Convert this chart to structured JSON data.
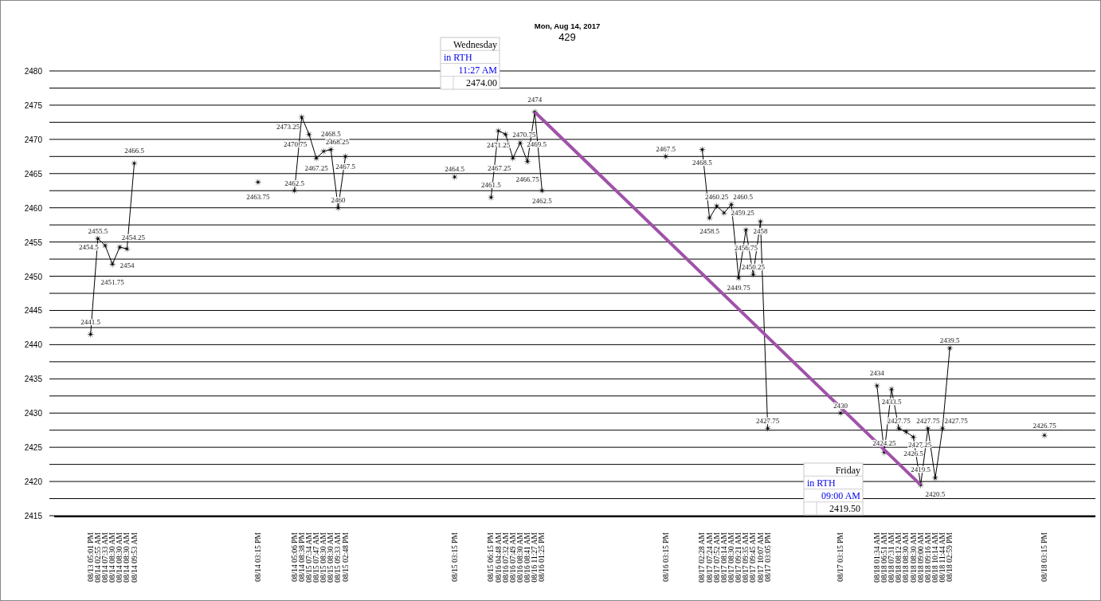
{
  "chart_data": {
    "type": "line",
    "title": "Mon, Aug 14, 2017",
    "subtitle": "429",
    "categories": [
      null,
      null,
      null,
      null,
      null,
      "08/13 05:01 PM",
      "08/14 02:55 AM",
      "08/14 07:33 AM",
      "08/14 08:30 AM",
      "08/14 08:30 AM",
      "08/14 08:30 AM",
      "08/14 09:53 AM",
      null,
      null,
      null,
      null,
      null,
      null,
      null,
      null,
      null,
      null,
      null,
      null,
      null,
      null,
      null,
      null,
      "08/14 03:15 PM",
      null,
      null,
      null,
      null,
      "08/14 05:06 PM",
      "08/14 08:38 PM",
      "08/15 07:34 AM",
      "08/15 07:47 AM",
      "08/15 08:30 AM",
      "08/15 08:30 AM",
      "08/15 09:33 AM",
      "08/15 02:48 PM",
      null,
      null,
      null,
      null,
      null,
      null,
      null,
      null,
      null,
      null,
      null,
      null,
      null,
      null,
      "08/15 03:15 PM",
      null,
      null,
      null,
      null,
      "08/15 06:15 PM",
      "08/16 04:48 AM",
      "08/16 07:32 AM",
      "08/16 07:49 AM",
      "08/16 08:30 AM",
      "08/16 08:41 AM",
      "08/16 11:27 AM",
      "08/16 01:25 PM",
      null,
      null,
      null,
      null,
      null,
      null,
      null,
      null,
      null,
      null,
      null,
      null,
      null,
      null,
      null,
      null,
      "08/16 03:15 PM",
      null,
      null,
      null,
      null,
      "08/17 02:28 AM",
      "08/17 07:24 AM",
      "08/17 07:52 AM",
      "08/17 08:14 AM",
      "08/17 08:30 AM",
      "08/17 09:21 AM",
      "08/17 09:35 AM",
      "08/17 09:45 AM",
      "08/17 10:07 AM",
      "08/17 03:05 PM",
      null,
      null,
      null,
      null,
      null,
      null,
      null,
      null,
      null,
      "08/17 03:15 PM",
      null,
      null,
      null,
      null,
      "08/18 01:34 AM",
      "08/18 06:51 AM",
      "08/18 07:31 AM",
      "08/18 08:12 AM",
      "08/18 08:30 AM",
      "08/18 08:30 AM",
      "08/18 09:00 AM",
      "08/18 09:16 AM",
      "08/18 10:14 AM",
      "08/18 11:44 AM",
      "08/18 02:59 PM",
      null,
      null,
      null,
      null,
      null,
      null,
      null,
      null,
      null,
      null,
      null,
      null,
      "08/18 03:15 PM",
      null,
      null,
      null,
      null,
      null,
      null,
      null
    ],
    "series": [
      {
        "color": "#000000",
        "marker": "star",
        "values": [
          null,
          null,
          null,
          null,
          null,
          2441.5,
          2455.5,
          2454.5,
          2451.75,
          2454.25,
          2454,
          2466.5,
          null,
          null,
          null,
          null,
          null,
          null,
          null,
          null,
          null,
          null,
          null,
          null,
          null,
          null,
          null,
          null,
          2463.75,
          null,
          null,
          null,
          null,
          2462.5,
          2473.25,
          2470.75,
          2467.25,
          2468.25,
          2468.5,
          2460,
          2467.5,
          null,
          null,
          null,
          null,
          null,
          null,
          null,
          null,
          null,
          null,
          null,
          null,
          null,
          null,
          2464.5,
          null,
          null,
          null,
          null,
          2461.5,
          2471.25,
          2470.75,
          2467.25,
          2469.5,
          2466.75,
          2474,
          2462.5,
          null,
          null,
          null,
          null,
          null,
          null,
          null,
          null,
          null,
          null,
          null,
          null,
          null,
          null,
          null,
          null,
          2467.5,
          null,
          null,
          null,
          null,
          2468.5,
          2458.5,
          2460.25,
          2459.25,
          2460.5,
          2449.75,
          2456.75,
          2450.25,
          2458,
          2427.75,
          null,
          null,
          null,
          null,
          null,
          null,
          null,
          null,
          null,
          2430,
          null,
          null,
          null,
          null,
          2434,
          2424.25,
          2433.5,
          2427.75,
          2427.25,
          2426.5,
          2419.5,
          2427.75,
          2420.5,
          2427.75,
          2439.5,
          null,
          null,
          null,
          null,
          null,
          null,
          null,
          null,
          null,
          null,
          null,
          null,
          2426.75,
          null,
          null,
          null,
          null,
          null,
          null,
          null
        ]
      },
      {
        "color": "#a052a8",
        "marker": "none",
        "x": [
          "08/16 11:27 AM",
          "08/18 09:00 AM"
        ],
        "values": [
          2474,
          2419.5
        ],
        "value_labels": [
          null,
          null
        ]
      }
    ],
    "ylim": [
      2415,
      2480
    ],
    "yticks": [
      2415,
      {
        "value": 2417.5,
        "label": null
      },
      2420,
      {
        "value": 2422.5,
        "label": null
      },
      2425,
      {
        "value": 2427.5,
        "label": null
      },
      2430,
      {
        "value": 2432.5,
        "label": null
      },
      2435,
      {
        "value": 2437.5,
        "label": null
      },
      2440,
      {
        "value": 2442.5,
        "label": null
      },
      2445,
      {
        "value": 2447.5,
        "label": null
      },
      2450,
      {
        "value": 2452.5,
        "label": null
      },
      2455,
      {
        "value": 2457.5,
        "label": null
      },
      2460,
      {
        "value": 2462.5,
        "label": null
      },
      2465,
      {
        "value": 2467.5,
        "label": null
      },
      2470,
      {
        "value": 2472.5,
        "label": null
      },
      2475,
      {
        "value": 2477.5,
        "label": null
      },
      2480
    ],
    "grid": "y",
    "data_labels": true,
    "annotations": [
      "Wednesday\nin RTH\n11:27 AM\n2474.00",
      "Friday\nin RTH\n09:00 AM\n2419.50"
    ]
  }
}
